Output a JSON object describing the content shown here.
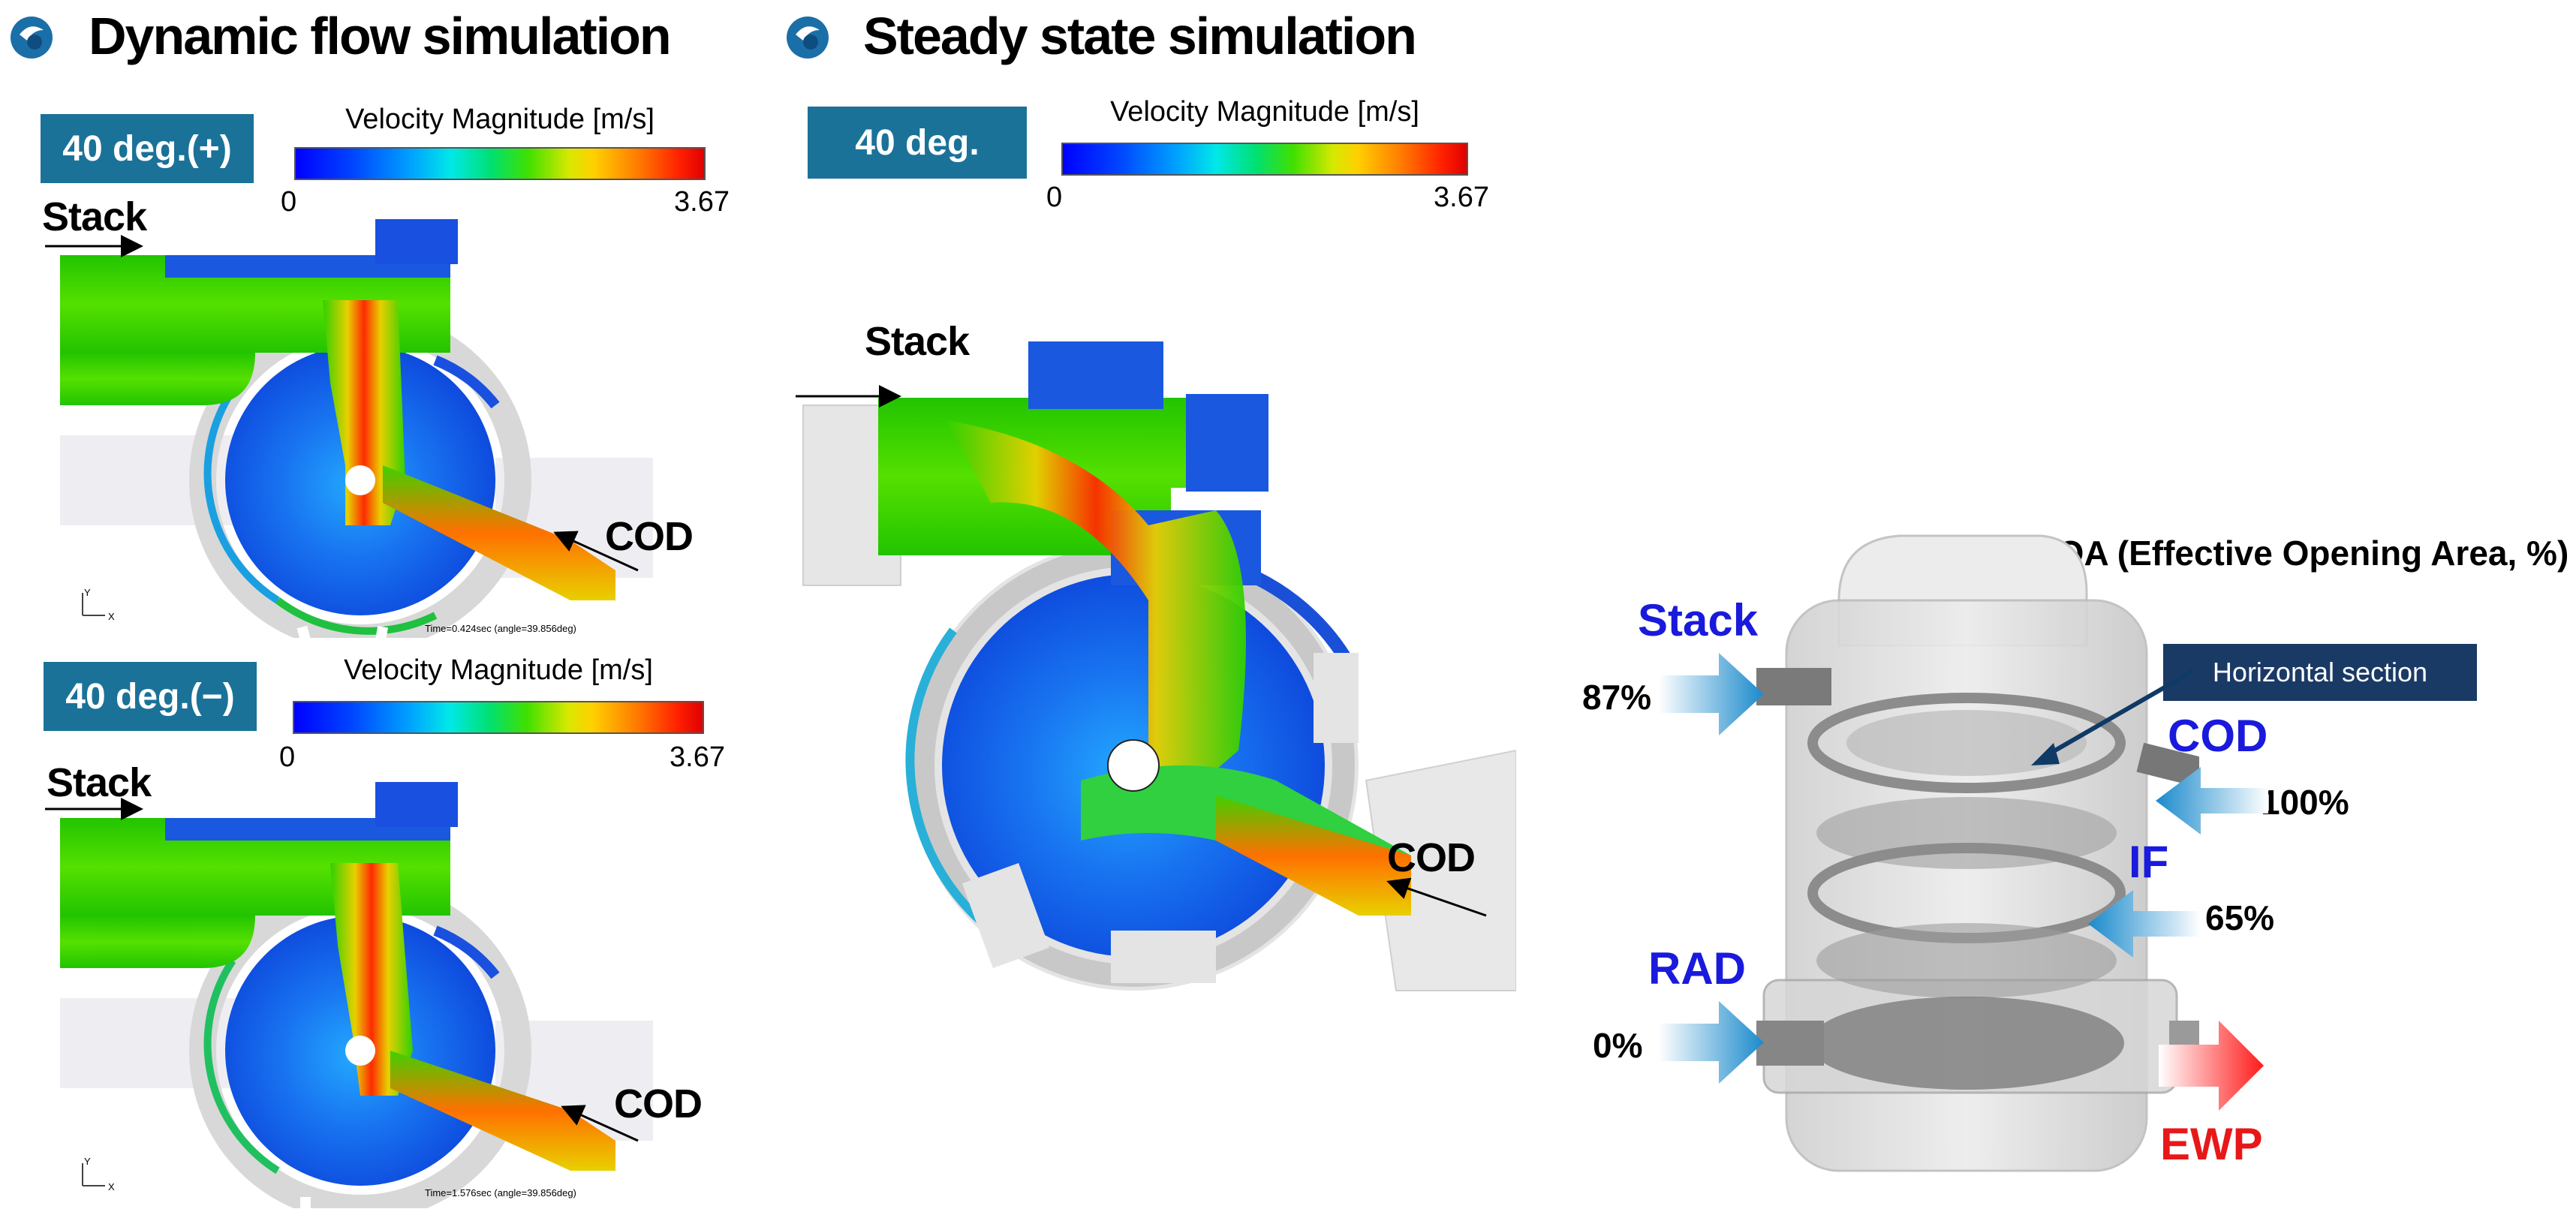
{
  "sections": {
    "dynamic_title": "Dynamic flow simulation",
    "steady_title": "Steady state simulation"
  },
  "colorbar": {
    "title": "Velocity Magnitude [m/s]",
    "min": "0",
    "max": "3.67"
  },
  "cases": {
    "dyn_plus": "40 deg.(+)",
    "dyn_minus": "40 deg.(−)",
    "steady": "40 deg."
  },
  "inlets": {
    "stack": "Stack",
    "cod": "COD"
  },
  "time_stamps": {
    "plus": "Time=0.424sec (angle=39.856deg)",
    "minus": "Time=1.576sec (angle=39.856deg)"
  },
  "axis_triad": {
    "y": "Y",
    "x": "X"
  },
  "eoa": {
    "title": "EOA (Effective Opening Area, %)",
    "section_label": "Horizontal section",
    "ports": {
      "stack": {
        "name": "Stack",
        "value": "87%"
      },
      "cod": {
        "name": "COD",
        "value": "100%"
      },
      "if": {
        "name": "IF",
        "value": "65%"
      },
      "rad": {
        "name": "RAD",
        "value": "0%"
      },
      "ewp": {
        "name": "EWP"
      }
    }
  },
  "colors": {
    "case_box": "#1b7298",
    "section_box": "#1a3a66",
    "port_blue": "#1a1adc",
    "port_red": "#e81818",
    "arrow_blue": "#1a8acc",
    "arrow_red": "#ff1a1a"
  },
  "icons": [
    "bullet-icon",
    "axis-triad-icon"
  ]
}
